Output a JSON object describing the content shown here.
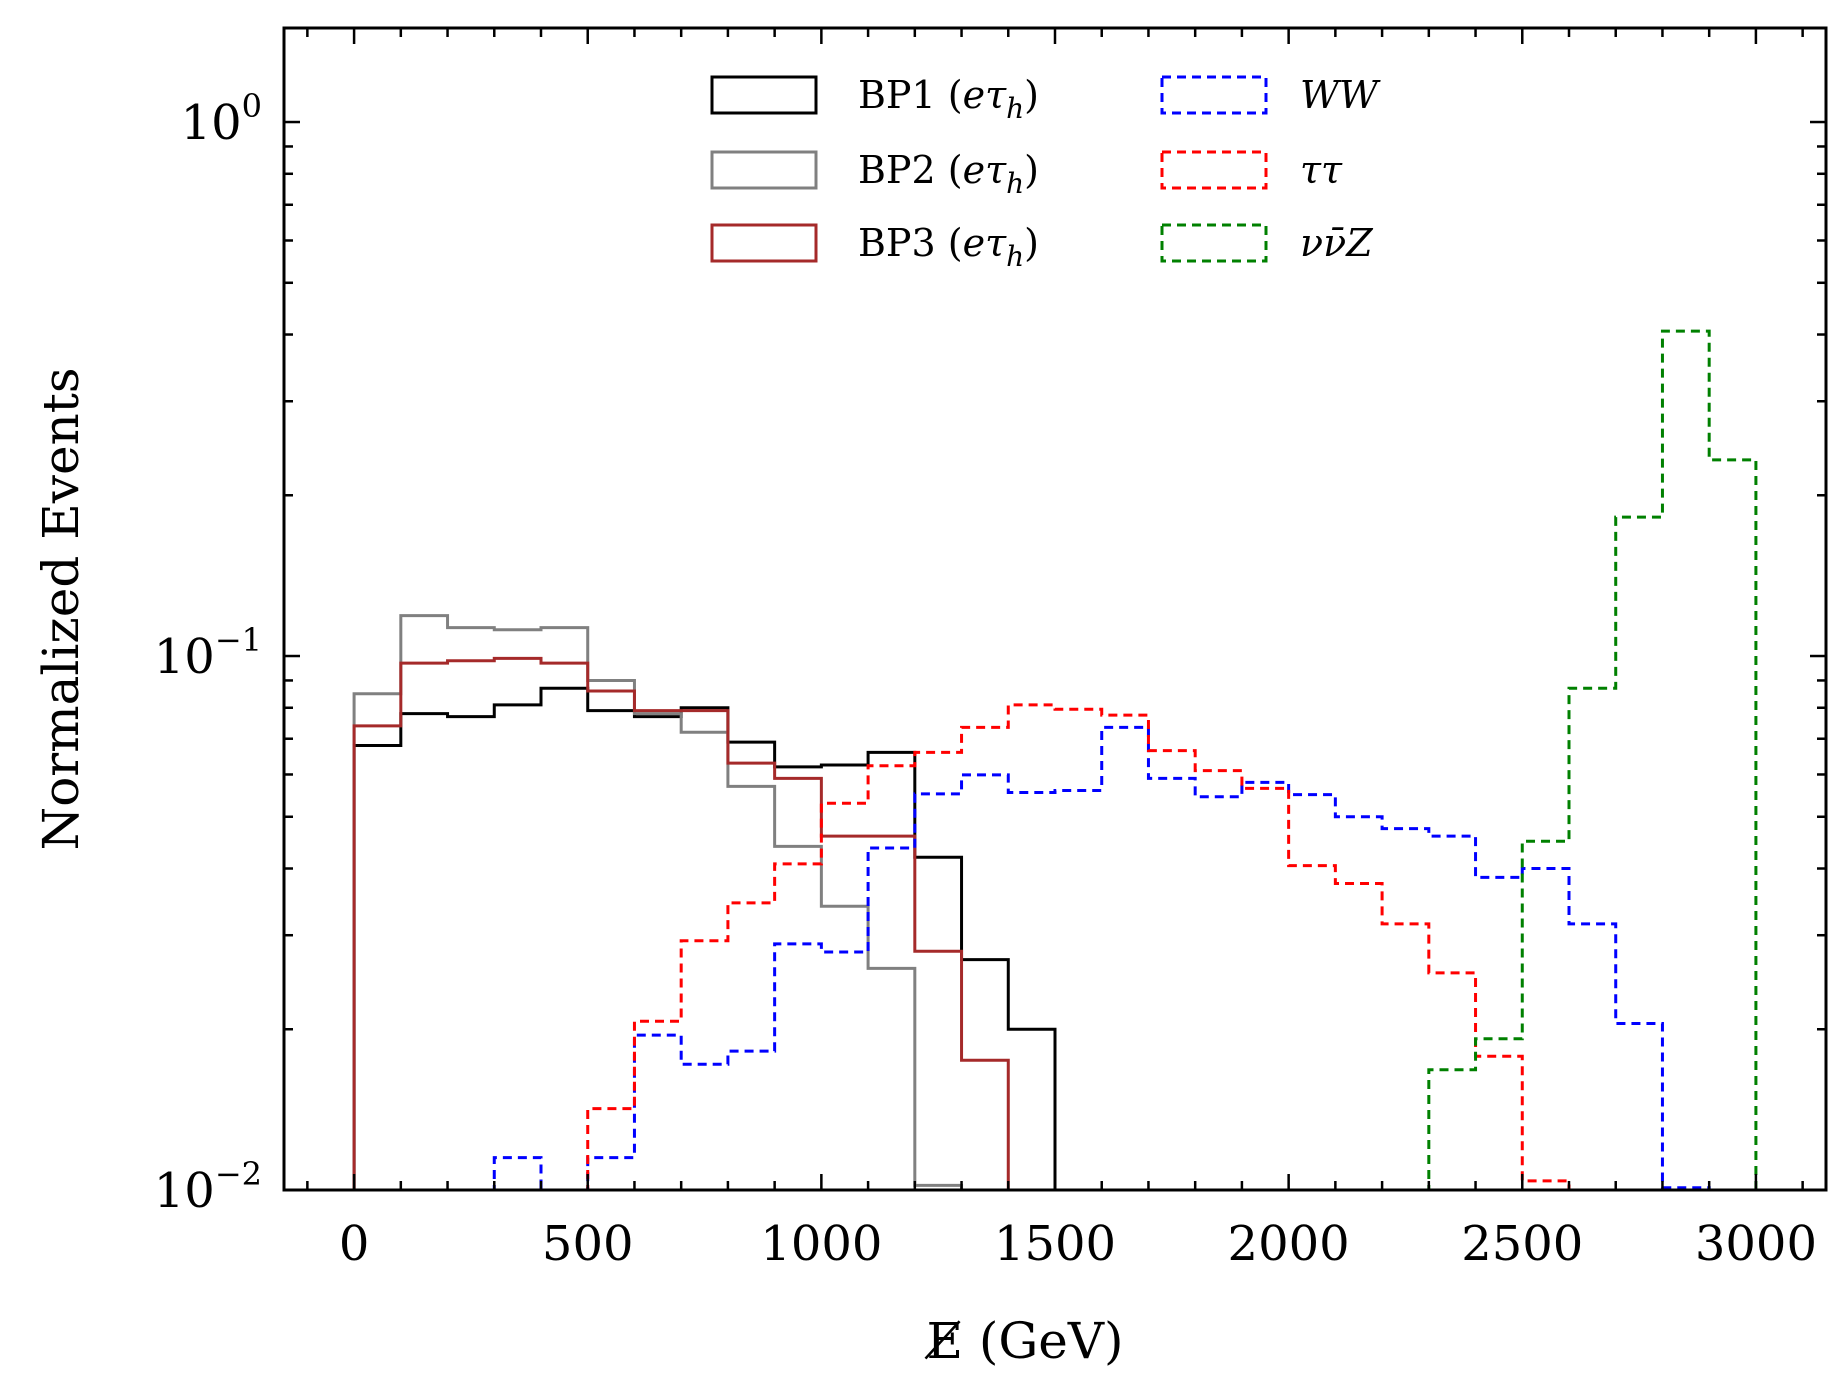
{
  "chart_data": {
    "type": "histogram",
    "xlabel": "E̸ (GeV)",
    "ylabel": "Normalized Events",
    "xlim": [
      -150,
      3150
    ],
    "ylim": [
      0.01,
      1.5
    ],
    "yscale": "log",
    "xticks": [
      0,
      500,
      1000,
      1500,
      2000,
      2500,
      3000
    ],
    "xtick_labels": [
      "0",
      "500",
      "1000",
      "1500",
      "2000",
      "2500",
      "3000"
    ],
    "yticks": [
      0.01,
      0.1,
      1
    ],
    "ytick_labels": [
      {
        "base": "10",
        "exp": "−2"
      },
      {
        "base": "10",
        "exp": "−1"
      },
      {
        "base": "10",
        "exp": "0"
      }
    ],
    "bin_edges": [
      0,
      100,
      200,
      300,
      400,
      500,
      600,
      700,
      800,
      900,
      1000,
      1100,
      1200,
      1300,
      1400,
      1500,
      1600,
      1700,
      1800,
      1900,
      2000,
      2100,
      2200,
      2300,
      2400,
      2500,
      2600,
      2700,
      2800,
      2900,
      3000
    ],
    "legend_position": "top-center",
    "series": [
      {
        "name": "BP1 (eτ_h)",
        "label_main": "BP1 (",
        "label_it": "eτ",
        "label_sub": "h",
        "label_end": ")",
        "color": "#000000",
        "dashed": false,
        "values": [
          0.068,
          0.078,
          0.077,
          0.081,
          0.087,
          0.079,
          0.077,
          0.08,
          0.069,
          0.062,
          0.0625,
          0.066,
          0.042,
          0.027,
          0.02,
          0.0095,
          null,
          null,
          null,
          null,
          null,
          null,
          null,
          null,
          null,
          null,
          null,
          null,
          null,
          null
        ]
      },
      {
        "name": "BP2 (eτ_h)",
        "label_main": "BP2 (",
        "label_it": "eτ",
        "label_sub": "h",
        "label_end": ")",
        "color": "#808080",
        "dashed": false,
        "values": [
          0.085,
          0.119,
          0.113,
          0.112,
          0.113,
          0.09,
          0.078,
          0.072,
          0.057,
          0.044,
          0.034,
          0.026,
          0.0102,
          0.0095,
          null,
          null,
          null,
          null,
          null,
          null,
          null,
          null,
          null,
          null,
          null,
          null,
          null,
          null,
          null,
          null
        ]
      },
      {
        "name": "BP3 (eτ_h)",
        "label_main": "BP3 (",
        "label_it": "eτ",
        "label_sub": "h",
        "label_end": ")",
        "color": "#a52a2a",
        "dashed": false,
        "values": [
          0.074,
          0.097,
          0.098,
          0.099,
          0.097,
          0.086,
          0.079,
          0.079,
          0.063,
          0.059,
          0.046,
          0.046,
          0.028,
          0.0175,
          0.0095,
          null,
          null,
          null,
          null,
          null,
          null,
          null,
          null,
          null,
          null,
          null,
          null,
          null,
          null,
          null
        ]
      },
      {
        "name": "WW",
        "label_it": "WW",
        "color": "#0000ff",
        "dashed": true,
        "values": [
          null,
          null,
          null,
          0.0115,
          0.0095,
          0.0115,
          0.0195,
          0.0172,
          0.0182,
          0.0289,
          0.0279,
          0.0437,
          0.0552,
          0.0599,
          0.0555,
          0.056,
          0.0735,
          0.059,
          0.0545,
          0.058,
          0.055,
          0.05,
          0.0475,
          0.046,
          0.0385,
          0.04,
          0.0315,
          0.0205,
          0.0101,
          0.0095
        ]
      },
      {
        "name": "ττ",
        "label_it": "ττ",
        "color": "#ff0000",
        "dashed": true,
        "values": [
          null,
          null,
          null,
          null,
          null,
          0.0142,
          0.0207,
          0.0293,
          0.0345,
          0.0408,
          0.053,
          0.0623,
          0.066,
          0.0735,
          0.081,
          0.0795,
          0.0775,
          0.0665,
          0.061,
          0.0565,
          0.0405,
          0.0375,
          0.0315,
          0.0255,
          0.0178,
          0.0104,
          null,
          null,
          null,
          null
        ]
      },
      {
        "name": "νν̄Z",
        "label_it": "νν̄Z",
        "color": "#008000",
        "dashed": true,
        "values": [
          null,
          null,
          null,
          null,
          null,
          null,
          null,
          null,
          null,
          null,
          null,
          null,
          null,
          null,
          null,
          null,
          null,
          null,
          null,
          null,
          null,
          null,
          null,
          0.0168,
          0.0192,
          0.045,
          0.087,
          0.182,
          0.406,
          0.233
        ]
      }
    ]
  }
}
